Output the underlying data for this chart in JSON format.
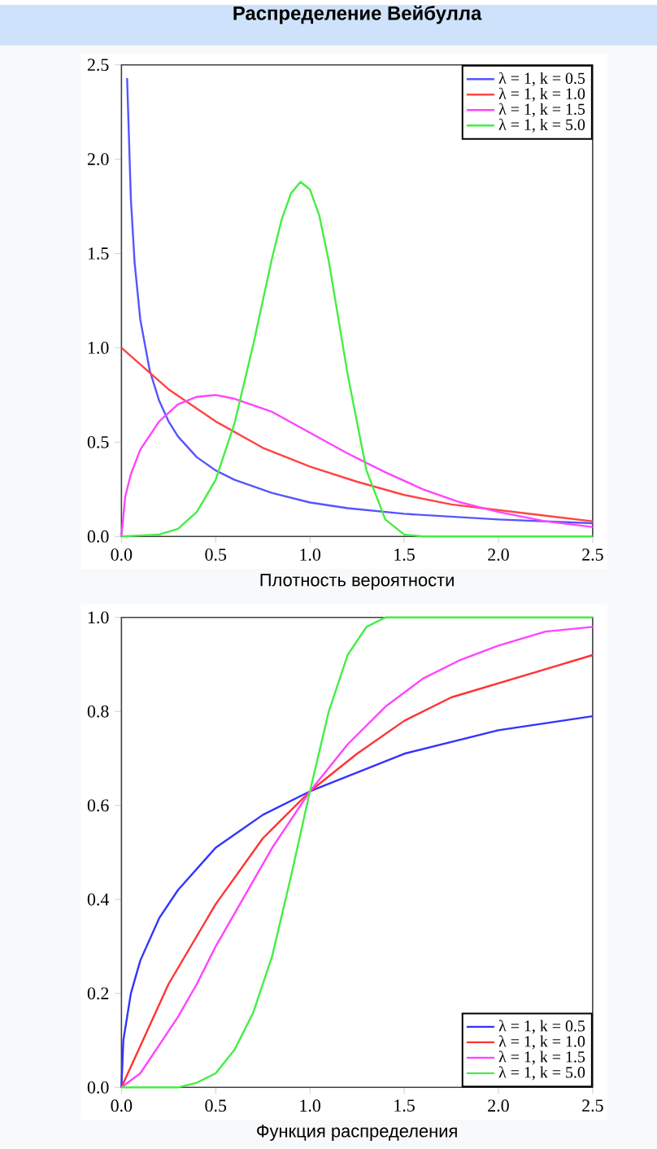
{
  "chart_data": [
    {
      "type": "line",
      "title": "Распределение Вейбулла",
      "xlabel": "Плотность вероятности",
      "xlim": [
        0,
        2.5
      ],
      "ylim": [
        0,
        2.5
      ],
      "xticks": [
        {
          "value": 0,
          "label": "0.0"
        },
        0.5,
        {
          "value": 1,
          "label": "1.0"
        },
        1.5,
        {
          "value": 2,
          "label": "2.0"
        },
        2.5
      ],
      "yticks": [
        {
          "value": 0,
          "label": "0.0"
        },
        0.5,
        {
          "value": 1,
          "label": "1.0"
        },
        1.5,
        {
          "value": 2,
          "label": "2.0"
        },
        2.5
      ],
      "legend": "top right",
      "series": [
        {
          "name": "λ = 1, k = 0.5",
          "color": "#5555ff",
          "x": [
            0.03,
            0.05,
            0.07,
            0.1,
            0.15,
            0.2,
            0.25,
            0.3,
            0.4,
            0.5,
            0.6,
            0.8,
            1.0,
            1.2,
            1.5,
            2.0,
            2.5
          ],
          "values": [
            2.43,
            1.79,
            1.45,
            1.15,
            0.88,
            0.72,
            0.61,
            0.53,
            0.42,
            0.35,
            0.3,
            0.23,
            0.18,
            0.15,
            0.12,
            0.09,
            0.07
          ]
        },
        {
          "name": "λ = 1, k = 1.0",
          "color": "#ff4444",
          "x": [
            0,
            0.25,
            0.5,
            0.75,
            1.0,
            1.25,
            1.5,
            1.75,
            2.0,
            2.25,
            2.5
          ],
          "values": [
            1.0,
            0.78,
            0.61,
            0.47,
            0.37,
            0.29,
            0.22,
            0.17,
            0.14,
            0.11,
            0.08
          ]
        },
        {
          "name": "λ = 1, k = 1.5",
          "color": "#ff44ff",
          "x": [
            0,
            0.02,
            0.05,
            0.1,
            0.2,
            0.3,
            0.4,
            0.5,
            0.6,
            0.8,
            1.0,
            1.2,
            1.4,
            1.6,
            1.8,
            2.0,
            2.25,
            2.5
          ],
          "values": [
            0,
            0.21,
            0.33,
            0.46,
            0.61,
            0.7,
            0.74,
            0.75,
            0.73,
            0.66,
            0.55,
            0.44,
            0.34,
            0.25,
            0.18,
            0.13,
            0.08,
            0.05
          ]
        },
        {
          "name": "λ = 1, k = 5.0",
          "color": "#44ee44",
          "x": [
            0,
            0.2,
            0.3,
            0.4,
            0.5,
            0.6,
            0.7,
            0.8,
            0.85,
            0.9,
            0.95,
            1.0,
            1.05,
            1.1,
            1.2,
            1.3,
            1.4,
            1.5,
            1.6,
            2.5
          ],
          "values": [
            0,
            0.01,
            0.04,
            0.13,
            0.3,
            0.6,
            1.02,
            1.48,
            1.68,
            1.82,
            1.88,
            1.84,
            1.7,
            1.46,
            0.86,
            0.35,
            0.09,
            0.01,
            0,
            0
          ]
        }
      ]
    },
    {
      "type": "line",
      "xlabel": "Функция распределения",
      "xlim": [
        0,
        2.5
      ],
      "ylim": [
        0,
        1
      ],
      "xticks": [
        {
          "value": 0,
          "label": "0.0"
        },
        0.5,
        {
          "value": 1,
          "label": "1.0"
        },
        1.5,
        {
          "value": 2,
          "label": "2.0"
        },
        2.5
      ],
      "yticks": [
        {
          "value": 0,
          "label": "0.0"
        },
        0.2,
        0.4,
        0.6,
        0.8,
        {
          "value": 1,
          "label": "1.0"
        }
      ],
      "legend": "bottom right",
      "series": [
        {
          "name": "λ = 1, k = 0.5",
          "color": "#3333ff",
          "x": [
            0,
            0.01,
            0.05,
            0.1,
            0.2,
            0.3,
            0.5,
            0.75,
            1.0,
            1.25,
            1.5,
            2.0,
            2.5
          ],
          "values": [
            0,
            0.1,
            0.2,
            0.27,
            0.36,
            0.42,
            0.51,
            0.58,
            0.63,
            0.67,
            0.71,
            0.76,
            0.79
          ]
        },
        {
          "name": "λ = 1, k = 1.0",
          "color": "#ff3333",
          "x": [
            0,
            0.25,
            0.5,
            0.75,
            1.0,
            1.25,
            1.5,
            1.75,
            2.0,
            2.25,
            2.5
          ],
          "values": [
            0,
            0.22,
            0.39,
            0.53,
            0.63,
            0.71,
            0.78,
            0.83,
            0.86,
            0.89,
            0.92
          ]
        },
        {
          "name": "λ = 1, k = 1.5",
          "color": "#ff44ff",
          "x": [
            0,
            0.1,
            0.2,
            0.3,
            0.4,
            0.5,
            0.6,
            0.8,
            1.0,
            1.2,
            1.4,
            1.6,
            1.8,
            2.0,
            2.25,
            2.5
          ],
          "values": [
            0,
            0.03,
            0.09,
            0.15,
            0.22,
            0.3,
            0.37,
            0.51,
            0.63,
            0.73,
            0.81,
            0.87,
            0.91,
            0.94,
            0.97,
            0.98
          ]
        },
        {
          "name": "λ = 1, k = 5.0",
          "color": "#44ee44",
          "x": [
            0,
            0.3,
            0.4,
            0.5,
            0.6,
            0.7,
            0.8,
            0.9,
            1.0,
            1.1,
            1.2,
            1.3,
            1.4,
            1.5,
            2.5
          ],
          "values": [
            0,
            0.0,
            0.01,
            0.03,
            0.08,
            0.16,
            0.28,
            0.45,
            0.63,
            0.8,
            0.92,
            0.98,
            1.0,
            1.0,
            1.0
          ]
        }
      ]
    }
  ]
}
